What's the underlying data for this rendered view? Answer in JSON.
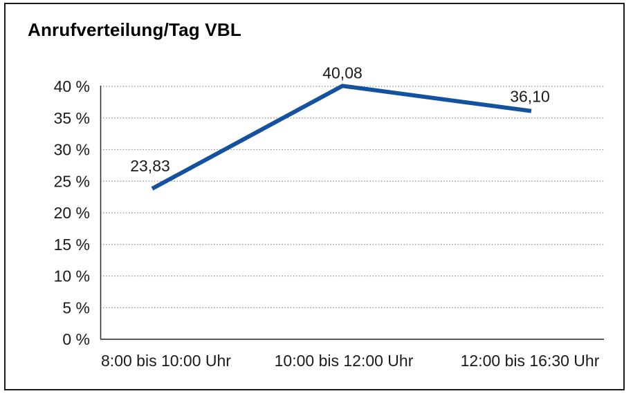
{
  "window": {
    "background": "#ffffff",
    "frame_color": "#1a1a1a"
  },
  "chart_data": {
    "type": "line",
    "title": "Anrufverteilung/Tag VBL",
    "categories": [
      "8:00 bis 10:00 Uhr",
      "10:00 bis 12:00 Uhr",
      "12:00 bis 16:30 Uhr"
    ],
    "series": [
      {
        "values": [
          23.83,
          40.08,
          36.1
        ],
        "point_labels": [
          "23,83",
          "40,08",
          "36,10"
        ],
        "color": "#14519f"
      }
    ],
    "xlabel": "",
    "ylabel": "",
    "ylim": [
      0,
      40
    ],
    "ytick_step": 5,
    "ytick_labels": [
      "0 %",
      "5 %",
      "10 %",
      "15 %",
      "20 %",
      "25 %",
      "30 %",
      "35 %",
      "40 %"
    ],
    "grid": "horizontal-dotted",
    "legend": "none"
  },
  "colors": {
    "line": "#14519f",
    "gridline": "#8a8a8a",
    "axis_x": "#555555",
    "axis_y": "#333333",
    "text": "#1a1a1a"
  }
}
